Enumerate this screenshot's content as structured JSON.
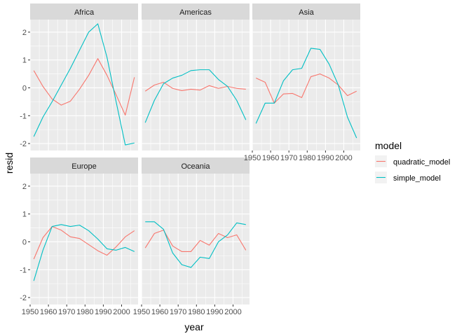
{
  "chart_data": {
    "type": "line",
    "xlabel": "year",
    "ylabel": "resid",
    "xlim": [
      1950,
      2009
    ],
    "ylim": [
      -2.25,
      2.45
    ],
    "x_ticks": [
      1950,
      1960,
      1970,
      1980,
      1990,
      2000
    ],
    "y_ticks": [
      -2,
      -1,
      0,
      1,
      2
    ],
    "x": [
      1952,
      1957,
      1962,
      1967,
      1972,
      1977,
      1982,
      1987,
      1992,
      1997,
      2002,
      2007
    ],
    "grid": true,
    "legend": {
      "title": "model",
      "position": "right",
      "entries": [
        {
          "name": "quadratic_model",
          "color": "#F8766D"
        },
        {
          "name": "simple_model",
          "color": "#00BFC4"
        }
      ]
    },
    "panels": [
      {
        "name": "Africa",
        "series": [
          {
            "name": "quadratic_model",
            "values": [
              0.62,
              0.05,
              -0.4,
              -0.62,
              -0.48,
              -0.05,
              0.45,
              1.05,
              0.45,
              -0.25,
              -0.98,
              0.38
            ]
          },
          {
            "name": "simple_model",
            "values": [
              -1.75,
              -1.05,
              -0.5,
              0.1,
              0.7,
              1.35,
              2.0,
              2.3,
              1.1,
              -0.5,
              -2.05,
              -1.98
            ]
          }
        ]
      },
      {
        "name": "Americas",
        "series": [
          {
            "name": "quadratic_model",
            "values": [
              -0.12,
              0.1,
              0.2,
              -0.02,
              -0.1,
              -0.05,
              -0.08,
              0.08,
              -0.02,
              0.05,
              -0.02,
              -0.05
            ]
          },
          {
            "name": "simple_model",
            "values": [
              -1.25,
              -0.45,
              0.15,
              0.35,
              0.45,
              0.62,
              0.65,
              0.65,
              0.3,
              0.05,
              -0.45,
              -1.15
            ]
          }
        ]
      },
      {
        "name": "Asia",
        "series": [
          {
            "name": "quadratic_model",
            "values": [
              0.35,
              0.2,
              -0.55,
              -0.22,
              -0.2,
              -0.35,
              0.4,
              0.5,
              0.35,
              0.1,
              -0.28,
              -0.12
            ]
          },
          {
            "name": "simple_model",
            "values": [
              -1.28,
              -0.55,
              -0.55,
              0.25,
              0.65,
              0.7,
              1.42,
              1.38,
              0.85,
              0.1,
              -1.05,
              -1.8
            ]
          }
        ]
      },
      {
        "name": "Europe",
        "series": [
          {
            "name": "quadratic_model",
            "values": [
              -0.62,
              0.15,
              0.55,
              0.42,
              0.18,
              0.12,
              -0.1,
              -0.32,
              -0.48,
              -0.18,
              0.18,
              0.4
            ]
          },
          {
            "name": "simple_model",
            "values": [
              -1.4,
              -0.3,
              0.55,
              0.62,
              0.55,
              0.6,
              0.4,
              0.1,
              -0.25,
              -0.3,
              -0.2,
              -0.35
            ]
          }
        ]
      },
      {
        "name": "Oceania",
        "series": [
          {
            "name": "quadratic_model",
            "values": [
              -0.22,
              0.3,
              0.42,
              -0.15,
              -0.35,
              -0.35,
              0.05,
              -0.12,
              0.3,
              0.15,
              0.25,
              -0.3
            ]
          },
          {
            "name": "simple_model",
            "values": [
              0.72,
              0.72,
              0.45,
              -0.4,
              -0.82,
              -0.92,
              -0.55,
              -0.6,
              0.0,
              0.25,
              0.68,
              0.62
            ]
          }
        ]
      }
    ]
  }
}
